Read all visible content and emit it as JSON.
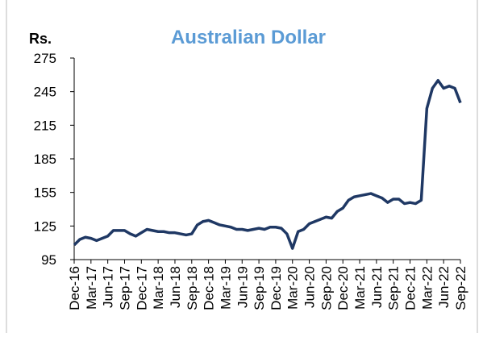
{
  "chart_data": {
    "type": "line",
    "title": "Australian Dollar",
    "y_label": "Rs.",
    "categories": [
      "Dec-16",
      null,
      null,
      "Mar-17",
      null,
      null,
      "Jun-17",
      null,
      null,
      "Sep-17",
      null,
      null,
      "Dec-17",
      null,
      null,
      "Mar-18",
      null,
      null,
      "Jun-18",
      null,
      null,
      "Sep-18",
      null,
      null,
      "Dec-18",
      null,
      null,
      "Mar-19",
      null,
      null,
      "Jun-19",
      null,
      null,
      "Sep-19",
      null,
      null,
      "Dec-19",
      null,
      null,
      "Mar-20",
      null,
      null,
      "Jun-20",
      null,
      null,
      "Sep-20",
      null,
      null,
      "Dec-20",
      null,
      null,
      "Mar-21",
      null,
      null,
      "Jun-21",
      null,
      null,
      "Sep-21",
      null,
      null,
      "Dec-21",
      null,
      null,
      "Mar-22",
      null,
      null,
      "Jun-22",
      null,
      null,
      "Sep-22"
    ],
    "series": [
      {
        "name": "Australian Dollar",
        "color": "#1f3864",
        "values": [
          108,
          113,
          115,
          114,
          112,
          114,
          116,
          121,
          121,
          121,
          118,
          116,
          119,
          122,
          121,
          120,
          120,
          119,
          119,
          118,
          117,
          118,
          126,
          129,
          130,
          128,
          126,
          125,
          124,
          122,
          122,
          121,
          122,
          123,
          122,
          124,
          124,
          123,
          118,
          105,
          120,
          122,
          127,
          129,
          131,
          133,
          132,
          138,
          141,
          148,
          151,
          152,
          153,
          154,
          152,
          150,
          146,
          149,
          149,
          145,
          146,
          145,
          148,
          230,
          248,
          255,
          248,
          250,
          248,
          235
        ]
      }
    ],
    "ylim": [
      95,
      275
    ],
    "yticks": [
      95,
      125,
      155,
      185,
      215,
      245,
      275
    ]
  }
}
